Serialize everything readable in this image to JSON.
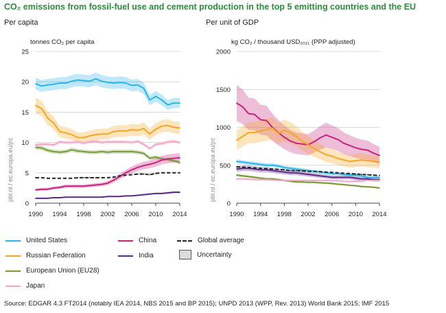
{
  "title": "CO₂ emissions from fossil-fuel use and cement production in the top 5 emitting countries and the EU",
  "source": "Source: EDGAR 4.3 FT2014 (notably IEA 2014, NBS 2015 and BP 2015); UNPD 2013 (WPP, Rev. 2013) World Bank 2015; IMF 2015",
  "watermark": "pbl.nl / ec.europa.eu/jrc",
  "legend": {
    "us": "United States",
    "russia": "Russian Federation",
    "eu": "European Union (EU28)",
    "japan": "Japan",
    "china": "China",
    "india": "India",
    "global": "Global average",
    "uncertainty": "Uncertainty"
  },
  "colors": {
    "us": "#2bb5e8",
    "russia": "#f5a623",
    "eu": "#7a9a3a",
    "japan": "#f4a7c8",
    "china": "#c8237e",
    "india": "#5b2a86",
    "global": "#222222",
    "grid": "#cfcfcf"
  },
  "chart_data": [
    {
      "type": "line",
      "title": "Per capita",
      "ylabel": "tonnes CO₂ per capita",
      "xlabel": "",
      "xlim": [
        1990,
        2014
      ],
      "ylim": [
        0,
        25
      ],
      "xticks": [
        1990,
        1994,
        1998,
        2002,
        2006,
        2010,
        2014
      ],
      "yticks": [
        0,
        5,
        10,
        15,
        20,
        25
      ],
      "x": [
        1990,
        1991,
        1992,
        1993,
        1994,
        1995,
        1996,
        1997,
        1998,
        1999,
        2000,
        2001,
        2002,
        2003,
        2004,
        2005,
        2006,
        2007,
        2008,
        2009,
        2010,
        2011,
        2012,
        2013,
        2014
      ],
      "series": [
        {
          "key": "us",
          "name": "United States",
          "uncertainty": 0.05,
          "values": [
            19.7,
            19.3,
            19.5,
            19.6,
            19.8,
            19.8,
            20.1,
            20.3,
            20.2,
            20.1,
            20.5,
            20.1,
            19.9,
            19.8,
            19.9,
            19.8,
            19.4,
            19.5,
            18.9,
            17.0,
            17.6,
            17.0,
            16.2,
            16.5,
            16.5
          ]
        },
        {
          "key": "russia",
          "name": "Russian Federation",
          "uncertainty": 0.08,
          "values": [
            16.1,
            15.6,
            14.0,
            13.2,
            11.8,
            11.6,
            11.3,
            10.8,
            10.8,
            11.1,
            11.3,
            11.4,
            11.4,
            11.8,
            11.9,
            11.9,
            12.1,
            12.0,
            12.3,
            11.4,
            12.2,
            12.7,
            12.8,
            12.5,
            12.4
          ]
        },
        {
          "key": "eu",
          "name": "European Union (EU28)",
          "uncertainty": 0.04,
          "values": [
            9.2,
            9.1,
            8.7,
            8.5,
            8.4,
            8.5,
            8.8,
            8.6,
            8.5,
            8.4,
            8.4,
            8.5,
            8.4,
            8.5,
            8.5,
            8.5,
            8.5,
            8.4,
            8.2,
            7.4,
            7.6,
            7.3,
            7.2,
            7.0,
            6.7
          ]
        },
        {
          "key": "japan",
          "name": "Japan",
          "uncertainty": 0.03,
          "values": [
            9.6,
            9.7,
            9.7,
            9.6,
            10.1,
            10.0,
            10.0,
            10.1,
            9.9,
            10.1,
            10.2,
            10.0,
            10.1,
            10.1,
            10.1,
            10.1,
            10.0,
            10.2,
            9.7,
            9.0,
            9.7,
            9.8,
            10.1,
            10.2,
            10.0
          ]
        },
        {
          "key": "china",
          "name": "China",
          "uncertainty": 0.1,
          "values": [
            2.2,
            2.3,
            2.3,
            2.5,
            2.6,
            2.8,
            2.8,
            2.8,
            2.8,
            2.9,
            3.0,
            3.1,
            3.3,
            3.8,
            4.4,
            5.0,
            5.5,
            5.9,
            6.2,
            6.4,
            6.7,
            7.1,
            7.3,
            7.4,
            7.5
          ]
        },
        {
          "key": "india",
          "name": "India",
          "uncertainty": 0.08,
          "values": [
            0.8,
            0.8,
            0.8,
            0.9,
            0.9,
            1.0,
            1.0,
            1.0,
            1.0,
            1.0,
            1.0,
            1.0,
            1.1,
            1.1,
            1.1,
            1.2,
            1.2,
            1.3,
            1.4,
            1.5,
            1.6,
            1.6,
            1.7,
            1.8,
            1.8
          ]
        },
        {
          "key": "global",
          "name": "Global average",
          "uncertainty": 0,
          "dashed": true,
          "values": [
            4.2,
            4.2,
            4.1,
            4.1,
            4.1,
            4.1,
            4.1,
            4.2,
            4.2,
            4.2,
            4.2,
            4.2,
            4.2,
            4.3,
            4.5,
            4.6,
            4.7,
            4.8,
            4.8,
            4.7,
            4.9,
            5.0,
            5.0,
            5.0,
            5.0
          ]
        }
      ]
    },
    {
      "type": "line",
      "title": "Per unit of GDP",
      "ylabel": "kg CO₂ / thousand USD₂₀₁₁ (PPP adjusted)",
      "xlabel": "",
      "xlim": [
        1990,
        2014
      ],
      "ylim": [
        0,
        2000
      ],
      "xticks": [
        1990,
        1994,
        1998,
        2002,
        2006,
        2010,
        2014
      ],
      "yticks": [
        0,
        500,
        1000,
        1500,
        2000
      ],
      "x": [
        1990,
        1991,
        1992,
        1993,
        1994,
        1995,
        1996,
        1997,
        1998,
        1999,
        2000,
        2001,
        2002,
        2003,
        2004,
        2005,
        2006,
        2007,
        2008,
        2009,
        2010,
        2011,
        2012,
        2013,
        2014
      ],
      "series": [
        {
          "key": "china",
          "name": "China",
          "uncertainty": 0.18,
          "values": [
            1320,
            1270,
            1180,
            1170,
            1100,
            1090,
            1000,
            930,
            870,
            820,
            790,
            780,
            770,
            810,
            860,
            900,
            870,
            840,
            790,
            760,
            730,
            710,
            700,
            660,
            630
          ]
        },
        {
          "key": "russia",
          "name": "Russian Federation",
          "uncertainty": 0.15,
          "values": [
            830,
            880,
            930,
            930,
            950,
            970,
            990,
            920,
            960,
            930,
            880,
            820,
            770,
            720,
            680,
            640,
            620,
            590,
            570,
            550,
            560,
            570,
            560,
            550,
            540
          ]
        },
        {
          "key": "us",
          "name": "United States",
          "uncertainty": 0.05,
          "values": [
            550,
            540,
            530,
            520,
            510,
            500,
            500,
            490,
            470,
            460,
            450,
            440,
            430,
            420,
            410,
            400,
            390,
            390,
            380,
            370,
            370,
            360,
            340,
            340,
            340
          ]
        },
        {
          "key": "india",
          "name": "India",
          "uncertainty": 0.08,
          "values": [
            450,
            460,
            460,
            450,
            440,
            440,
            430,
            420,
            410,
            400,
            400,
            390,
            380,
            370,
            360,
            350,
            340,
            340,
            340,
            340,
            330,
            320,
            320,
            310,
            310
          ]
        },
        {
          "key": "eu",
          "name": "European Union (EU28)",
          "uncertainty": 0.05,
          "values": [
            370,
            360,
            350,
            340,
            330,
            320,
            320,
            310,
            300,
            290,
            280,
            280,
            275,
            275,
            270,
            265,
            260,
            250,
            245,
            235,
            230,
            220,
            215,
            210,
            200
          ]
        },
        {
          "key": "japan",
          "name": "Japan",
          "uncertainty": 0.03,
          "values": [
            320,
            320,
            315,
            310,
            310,
            310,
            305,
            300,
            300,
            300,
            300,
            300,
            300,
            300,
            300,
            300,
            295,
            295,
            290,
            285,
            290,
            290,
            300,
            300,
            300
          ]
        },
        {
          "key": "global",
          "name": "Global average",
          "uncertainty": 0,
          "dashed": true,
          "values": [
            480,
            475,
            470,
            465,
            460,
            455,
            450,
            445,
            440,
            430,
            430,
            425,
            420,
            420,
            415,
            410,
            405,
            400,
            395,
            390,
            385,
            380,
            375,
            370,
            365
          ]
        }
      ]
    }
  ]
}
